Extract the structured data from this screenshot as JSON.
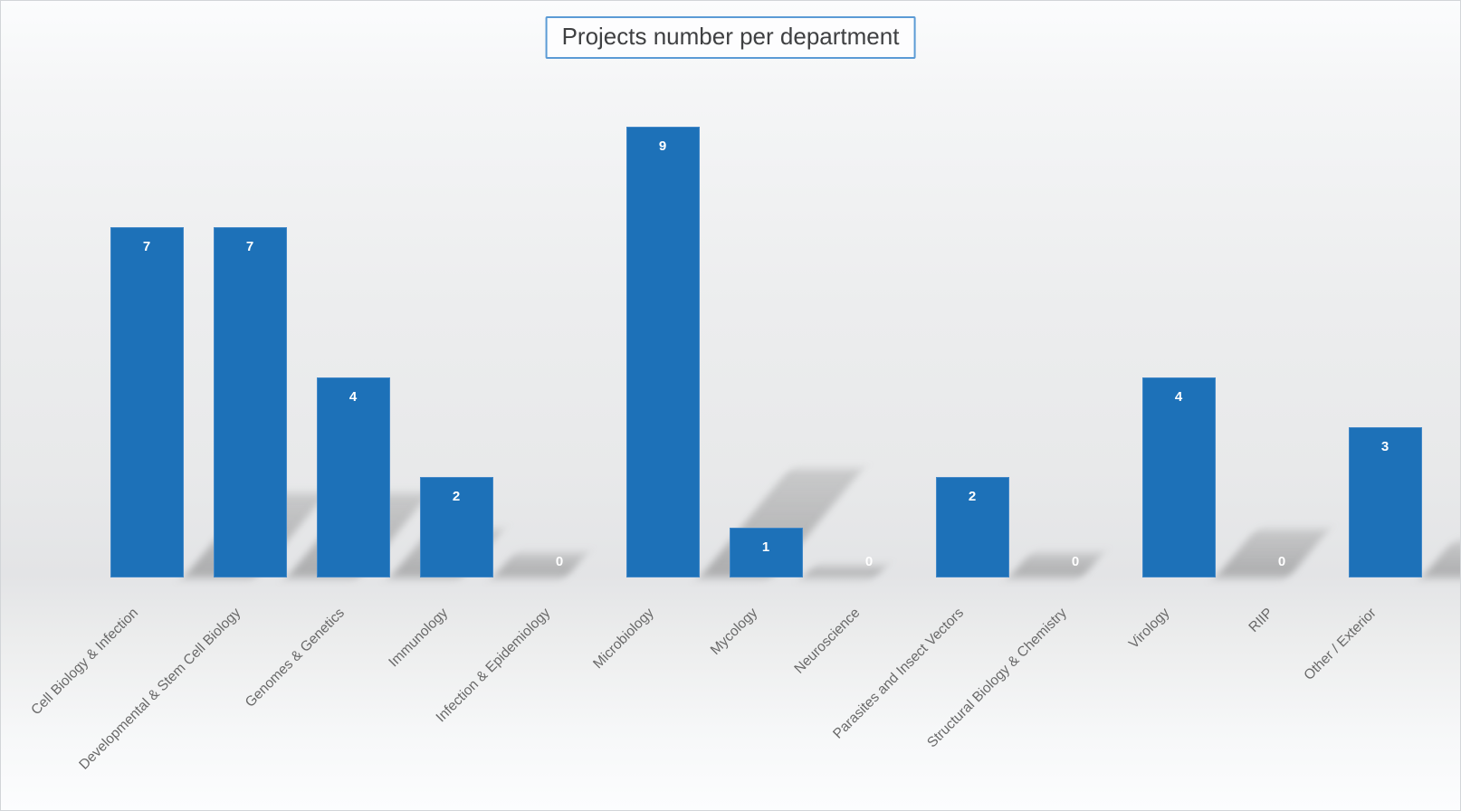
{
  "chart_data": {
    "type": "bar",
    "title": "Projects number per department",
    "categories": [
      "Cell Biology & Infection",
      "Developmental & Stem Cell Biology",
      "Genomes & Genetics",
      "Immunology",
      "Infection & Epidemiology",
      "Microbiology",
      "Mycology",
      "Neuroscience",
      "Parasites and Insect Vectors",
      "Structural Biology & Chemistry",
      "Virology",
      "RIIP",
      "Other / Exterior"
    ],
    "values": [
      7,
      7,
      4,
      2,
      0,
      9,
      1,
      0,
      2,
      0,
      4,
      0,
      3
    ],
    "xlabel": "",
    "ylabel": "",
    "ylim": [
      0,
      9.5
    ],
    "grid": false,
    "legend": false,
    "y_axis_visible": false,
    "x_tick_rotation": 45,
    "data_labels": "inside-end white bold; zero values shown as 0 at baseline",
    "bar_color": "#1D71B8",
    "bar_border_color": "#4288C8",
    "data_label_color": "#FFFFFF",
    "category_label_color": "#696969",
    "title_border_color": "#5B9BD5",
    "title_text_color": "#3F4042",
    "shadow_style": "perspective shadow cast to the lower-right of each bar",
    "background_style": "vertical light-gray gradient with lighter floor below baseline"
  }
}
